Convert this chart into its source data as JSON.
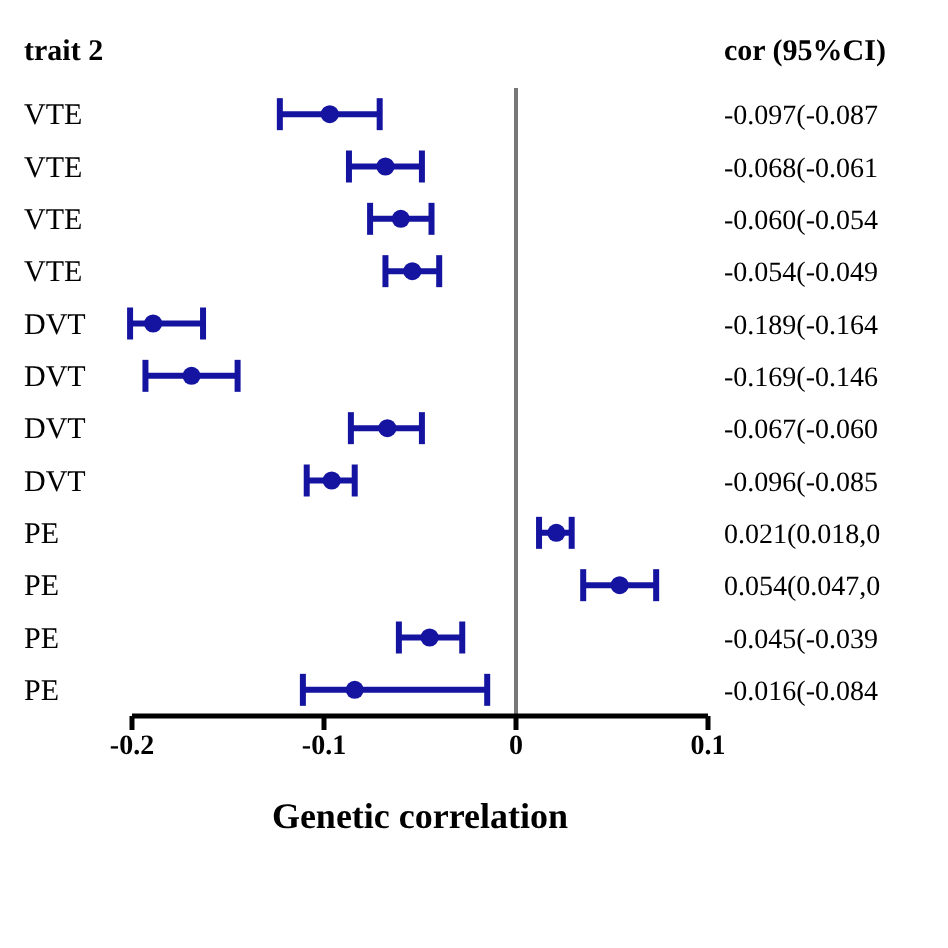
{
  "chart_data": {
    "type": "scatter",
    "orientation": "horizontal",
    "ylabel": "trait 2",
    "xlabel": "Genetic correlation",
    "annotations": [
      "cor (95%CI)"
    ],
    "categories": [
      "VTE",
      "VTE",
      "VTE",
      "VTE",
      "DVT",
      "DVT",
      "DVT",
      "DVT",
      "PE",
      "PE",
      "PE",
      "PE"
    ],
    "series": [
      {
        "color": "#1414a0",
        "values": [
          -0.097,
          -0.068,
          -0.06,
          -0.054,
          -0.189,
          -0.169,
          -0.067,
          -0.096,
          0.021,
          0.054,
          -0.045,
          -0.084
        ],
        "errors": [
          [
            -0.123,
            -0.071
          ],
          [
            -0.087,
            -0.049
          ],
          [
            -0.076,
            -0.044
          ],
          [
            -0.068,
            -0.04
          ],
          [
            -0.201,
            -0.163
          ],
          [
            -0.193,
            -0.145
          ],
          [
            -0.086,
            -0.049
          ],
          [
            -0.109,
            -0.084
          ],
          [
            0.012,
            0.029
          ],
          [
            0.035,
            0.073
          ],
          [
            -0.061,
            -0.028
          ],
          [
            -0.111,
            -0.015
          ]
        ],
        "value_labels": [
          "-0.097(-0.087",
          "-0.068(-0.061",
          "-0.060(-0.054",
          "-0.054(-0.049",
          "-0.189(-0.164",
          "-0.169(-0.146",
          "-0.067(-0.060",
          "-0.096(-0.085",
          "0.021(0.018,0",
          "0.054(0.047,0",
          "-0.045(-0.039",
          "-0.016(-0.084"
        ]
      }
    ],
    "xlim": [
      -0.2,
      0.1
    ],
    "xticks": [
      -0.2,
      -0.1,
      0,
      0.1
    ],
    "ref_lines": [
      {
        "axis": "x",
        "value": 0,
        "color": "#777777"
      }
    ],
    "marker": "circle",
    "grid": false,
    "legend": false
  }
}
